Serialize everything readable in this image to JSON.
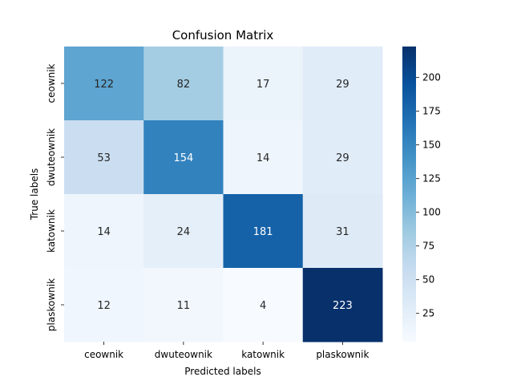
{
  "chart_data": {
    "type": "heatmap",
    "title": "Confusion Matrix",
    "xlabel": "Predicted labels",
    "ylabel": "True labels",
    "x_categories": [
      "ceownik",
      "dwuteownik",
      "katownik",
      "plaskownik"
    ],
    "y_categories": [
      "ceownik",
      "dwuteownik",
      "katownik",
      "plaskownik"
    ],
    "matrix": [
      [
        122,
        82,
        17,
        29
      ],
      [
        53,
        154,
        14,
        29
      ],
      [
        14,
        24,
        181,
        31
      ],
      [
        12,
        11,
        4,
        223
      ]
    ],
    "colorbar": {
      "vmin": 4,
      "vmax": 223,
      "ticks": [
        25,
        50,
        75,
        100,
        125,
        150,
        175,
        200
      ]
    },
    "colormap": "Blues",
    "colors": {
      "low": "#f7fbff",
      "high": "#08306b"
    }
  }
}
